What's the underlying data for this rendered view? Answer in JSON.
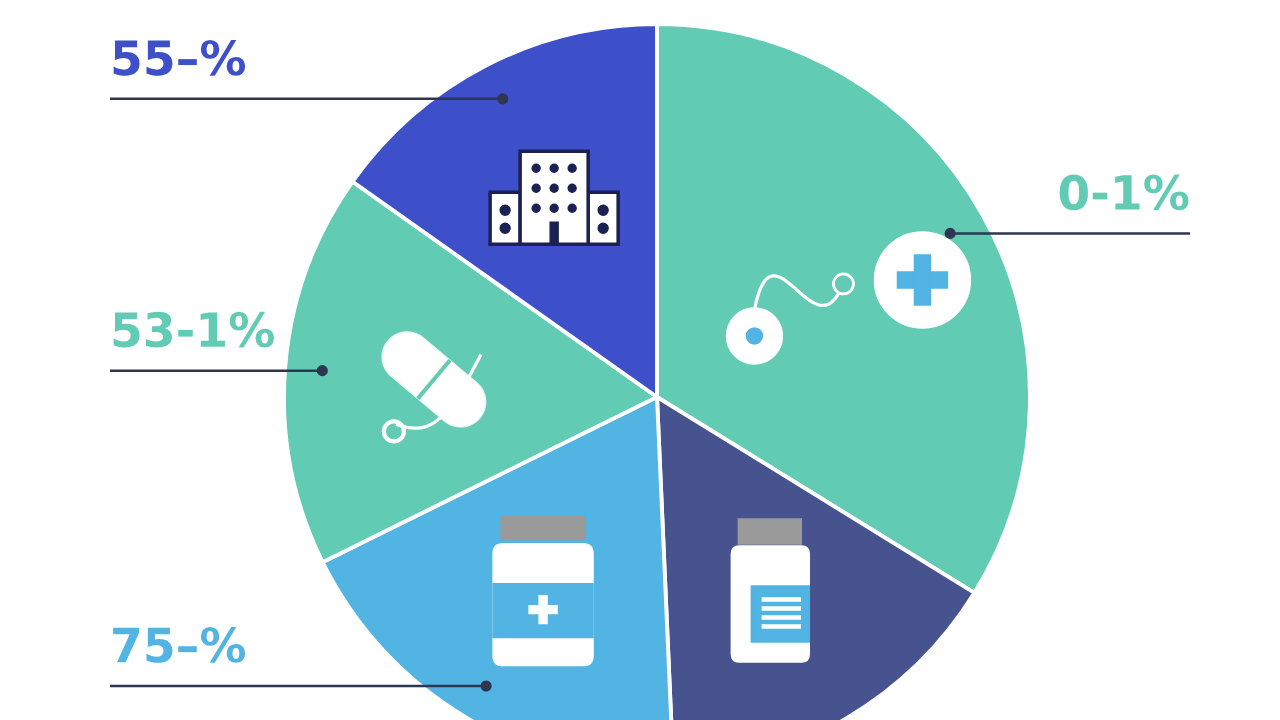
{
  "chart_data": {
    "type": "pie",
    "categories": [
      "0-1%",
      null,
      "75–%",
      "53-1%",
      "55–%"
    ],
    "values": [
      33.8,
      15.5,
      18.4,
      17.1,
      15.2
    ],
    "colors": [
      "#62cbb3",
      "#47538f",
      "#52b4e2",
      "#62cbb3",
      "#3d4fc9"
    ]
  }
}
